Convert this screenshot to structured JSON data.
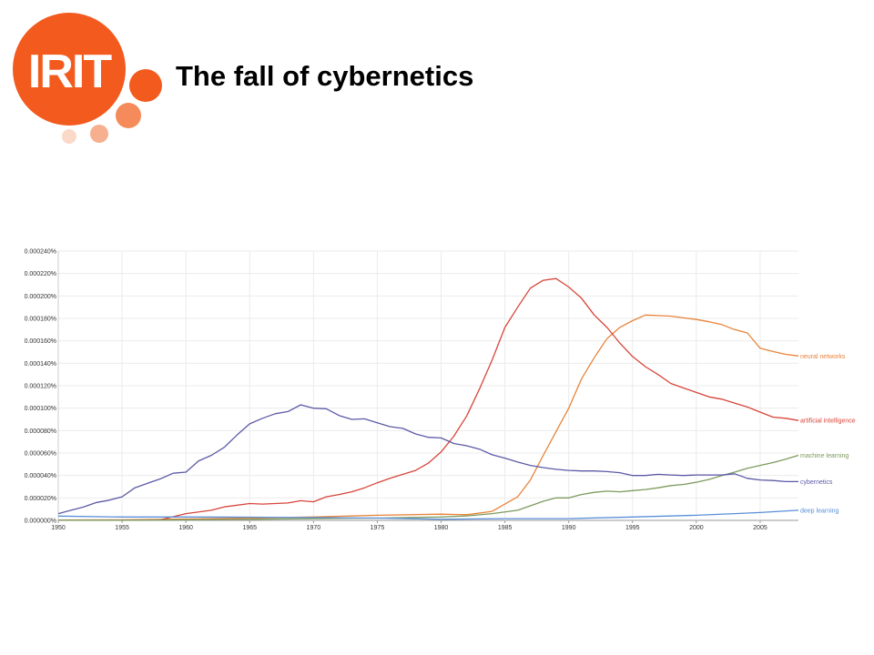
{
  "slide": {
    "title": "The fall of cybernetics",
    "logo_text": "IRIT"
  },
  "colors": {
    "logo_orange": "#f25a1e",
    "logo_light": "#f7b08f",
    "logo_lighter": "#fbd9c8"
  },
  "chart_data": {
    "type": "line",
    "title": "",
    "xlabel": "",
    "ylabel": "",
    "xlim": [
      1950,
      2008
    ],
    "ylim": [
      0,
      0.00024
    ],
    "x_ticks": [
      "1950",
      "1955",
      "1960",
      "1965",
      "1970",
      "1975",
      "1980",
      "1985",
      "1990",
      "1995",
      "2000",
      "2005"
    ],
    "y_ticks": [
      "0.000000%",
      "0.000020%",
      "0.000040%",
      "0.000060%",
      "0.000080%",
      "0.000100%",
      "0.000120%",
      "0.000140%",
      "0.000160%",
      "0.000180%",
      "0.000200%",
      "0.000220%",
      "0.000240%"
    ],
    "grid": true,
    "legend": "line-end labels at right",
    "series": [
      {
        "name": "neural networks",
        "color": "#e8833a",
        "x": [
          1950,
          1955,
          1960,
          1965,
          1970,
          1975,
          1980,
          1982,
          1984,
          1986,
          1987,
          1988,
          1989,
          1990,
          1991,
          1992,
          1993,
          1994,
          1995,
          1996,
          1997,
          1998,
          1999,
          2000,
          2001,
          2002,
          2003,
          2004,
          2005,
          2006,
          2007,
          2008
        ],
        "y": [
          3e-07,
          5e-07,
          1.2e-06,
          2e-06,
          3e-06,
          4.5e-06,
          5.5e-06,
          5e-06,
          8e-06,
          2.1e-05,
          3.6e-05,
          5.8e-05,
          7.9e-05,
          0.0001,
          0.000126,
          0.000145,
          0.000162,
          0.000172,
          0.000178,
          0.000183,
          0.0001825,
          0.000182,
          0.0001805,
          0.000179,
          0.000177,
          0.0001745,
          0.00017,
          0.000167,
          0.0001535,
          0.0001505,
          0.000148,
          0.0001465
        ]
      },
      {
        "name": "artificial intelligence",
        "color": "#d7453a",
        "x": [
          1950,
          1955,
          1958,
          1960,
          1962,
          1963,
          1965,
          1966,
          1968,
          1969,
          1970,
          1971,
          1972,
          1973,
          1974,
          1975,
          1976,
          1977,
          1978,
          1979,
          1980,
          1981,
          1982,
          1983,
          1984,
          1985,
          1986,
          1987,
          1988,
          1989,
          1990,
          1991,
          1992,
          1993,
          1994,
          1995,
          1996,
          1997,
          1998,
          1999,
          2000,
          2001,
          2002,
          2003,
          2004,
          2005,
          2006,
          2007,
          2008
        ],
        "y": [
          2e-07,
          3e-07,
          5e-07,
          6e-06,
          9e-06,
          1.2e-05,
          1.5e-05,
          1.45e-05,
          1.55e-05,
          1.75e-05,
          1.65e-05,
          2.1e-05,
          2.3e-05,
          2.55e-05,
          2.9e-05,
          3.35e-05,
          3.75e-05,
          4.1e-05,
          4.45e-05,
          5.1e-05,
          6.1e-05,
          7.5e-05,
          9.3e-05,
          0.000117,
          0.000143,
          0.000172,
          0.00019,
          0.000207,
          0.000214,
          0.0002155,
          0.000208,
          0.000198,
          0.000183,
          0.000172,
          0.000158,
          0.000146,
          0.000137,
          0.00013,
          0.000122,
          0.000118,
          0.000114,
          0.00011,
          0.000108,
          0.0001045,
          0.000101,
          9.65e-05,
          9.2e-05,
          9.1e-05,
          8.9e-05
        ]
      },
      {
        "name": "machine learning",
        "color": "#7c9b5e",
        "x": [
          1950,
          1955,
          1960,
          1965,
          1970,
          1975,
          1980,
          1982,
          1984,
          1986,
          1987,
          1988,
          1989,
          1990,
          1991,
          1992,
          1993,
          1994,
          1995,
          1996,
          1997,
          1998,
          1999,
          2000,
          2001,
          2002,
          2003,
          2004,
          2005,
          2006,
          2007,
          2008
        ],
        "y": [
          2e-07,
          2e-07,
          5e-07,
          1e-06,
          1.5e-06,
          2e-06,
          3e-06,
          4e-06,
          6e-06,
          9e-06,
          1.3e-05,
          1.7e-05,
          2e-05,
          2e-05,
          2.3e-05,
          2.5e-05,
          2.6e-05,
          2.55e-05,
          2.65e-05,
          2.75e-05,
          2.9e-05,
          3.1e-05,
          3.2e-05,
          3.4e-05,
          3.65e-05,
          4e-05,
          4.3e-05,
          4.65e-05,
          4.9e-05,
          5.15e-05,
          5.45e-05,
          5.8e-05
        ]
      },
      {
        "name": "cybernetics",
        "color": "#5c5aa6",
        "x": [
          1950,
          1951,
          1952,
          1953,
          1954,
          1955,
          1956,
          1957,
          1958,
          1959,
          1960,
          1961,
          1962,
          1963,
          1964,
          1965,
          1966,
          1967,
          1968,
          1969,
          1970,
          1971,
          1972,
          1973,
          1974,
          1975,
          1976,
          1977,
          1978,
          1979,
          1980,
          1981,
          1982,
          1983,
          1984,
          1985,
          1986,
          1987,
          1988,
          1989,
          1990,
          1991,
          1992,
          1993,
          1994,
          1995,
          1996,
          1997,
          1998,
          1999,
          2000,
          2001,
          2002,
          2003,
          2004,
          2005,
          2006,
          2007,
          2008
        ],
        "y": [
          6e-06,
          9e-06,
          1.2e-05,
          1.6e-05,
          1.8e-05,
          2.1e-05,
          2.9e-05,
          3.3e-05,
          3.7e-05,
          4.2e-05,
          4.3e-05,
          5.3e-05,
          5.8e-05,
          6.5e-05,
          7.6e-05,
          8.6e-05,
          9.1e-05,
          9.5e-05,
          9.7e-05,
          0.000103,
          0.0001,
          9.95e-05,
          9.35e-05,
          9e-05,
          9.05e-05,
          8.7e-05,
          8.35e-05,
          8.2e-05,
          7.7e-05,
          7.4e-05,
          7.35e-05,
          6.85e-05,
          6.65e-05,
          6.35e-05,
          5.85e-05,
          5.55e-05,
          5.2e-05,
          4.9e-05,
          4.7e-05,
          4.55e-05,
          4.45e-05,
          4.4e-05,
          4.4e-05,
          4.35e-05,
          4.25e-05,
          4e-05,
          4e-05,
          4.1e-05,
          4.05e-05,
          4e-05,
          4.05e-05,
          4.05e-05,
          4.05e-05,
          4.15e-05,
          3.75e-05,
          3.6e-05,
          3.55e-05,
          3.45e-05,
          3.45e-05
        ]
      },
      {
        "name": "deep learning",
        "color": "#5a8fd8",
        "x": [
          1950,
          1955,
          1960,
          1965,
          1970,
          1975,
          1980,
          1985,
          1990,
          1995,
          2000,
          2003,
          2005,
          2008
        ],
        "y": [
          3.8e-06,
          3e-06,
          3e-06,
          2.8e-06,
          2.5e-06,
          2e-06,
          1e-06,
          1.5e-06,
          1.5e-06,
          3e-06,
          4.5e-06,
          6e-06,
          7e-06,
          9e-06
        ]
      }
    ]
  }
}
